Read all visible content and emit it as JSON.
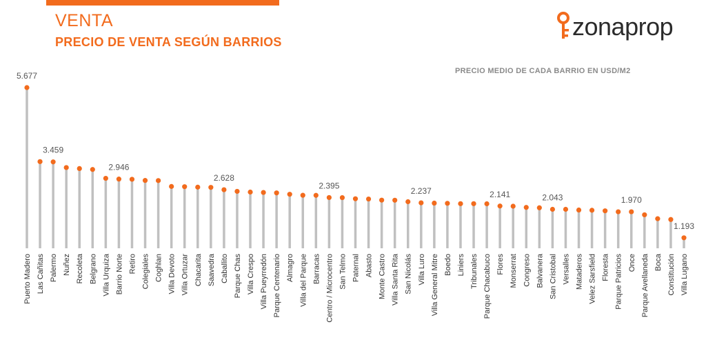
{
  "header": {
    "title": "VENTA",
    "subtitle": "PRECIO DE VENTA SEGÚN BARRIOS",
    "logo_text": "zonaprop"
  },
  "colors": {
    "accent": "#f26b1d",
    "stem": "#c0c0c0",
    "text": "#333333"
  },
  "chart_data": {
    "type": "lollipop",
    "caption": "PRECIO MEDIO DE CADA BARRIO EN USD/M2",
    "unit": "USD/m2",
    "ylim": [
      1000,
      5677
    ],
    "categories": [
      "Puerto Madero",
      "Las Cañitas",
      "Palermo",
      "Nuñez",
      "Recoleta",
      "Belgrano",
      "Villa Urquiza",
      "Barrio Norte",
      "Retiro",
      "Colegiales",
      "Coghlan",
      "Villa Devoto",
      "Villa Ortuzar",
      "Chacarita",
      "Saavedra",
      "Caballito",
      "Parque Chas",
      "Villa Crespo",
      "Villa Pueyrredón",
      "Parque Centenario",
      "Almagro",
      "Villa del Parque",
      "Barracas",
      "Centro / Microcentro",
      "San Telmo",
      "Paternal",
      "Abasto",
      "Monte Castro",
      "Villa Santa Rita",
      "San Nicolás",
      "Villa Luro",
      "Villa General Mitre",
      "Boedo",
      "Liniers",
      "Tribunales",
      "Parque Chacabuco",
      "Flores",
      "Monserrat",
      "Congreso",
      "Balvanera",
      "San Cristobal",
      "Versalles",
      "Mataderos",
      "Velez Sarsfield",
      "Floresta",
      "Parque Patricios",
      "Once",
      "Parque Avellaneda",
      "Boca",
      "Constitución",
      "Villa Lugano"
    ],
    "values": [
      5677,
      3467,
      3459,
      3290,
      3260,
      3232,
      2968,
      2946,
      2940,
      2905,
      2901,
      2725,
      2718,
      2705,
      2698,
      2628,
      2580,
      2558,
      2546,
      2533,
      2492,
      2462,
      2460,
      2395,
      2392,
      2358,
      2351,
      2317,
      2315,
      2270,
      2237,
      2228,
      2222,
      2211,
      2211,
      2208,
      2141,
      2136,
      2100,
      2089,
      2043,
      2043,
      2022,
      2015,
      1998,
      1970,
      1970,
      1880,
      1763,
      1739,
      1193
    ],
    "data_labels": [
      {
        "index": 0,
        "text": "5.677"
      },
      {
        "index": 2,
        "text": "3.459"
      },
      {
        "index": 7,
        "text": "2.946"
      },
      {
        "index": 15,
        "text": "2.628"
      },
      {
        "index": 23,
        "text": "2.395"
      },
      {
        "index": 30,
        "text": "2.237"
      },
      {
        "index": 36,
        "text": "2.141"
      },
      {
        "index": 40,
        "text": "2.043"
      },
      {
        "index": 46,
        "text": "1.970"
      },
      {
        "index": 50,
        "text": "1.193"
      }
    ]
  }
}
